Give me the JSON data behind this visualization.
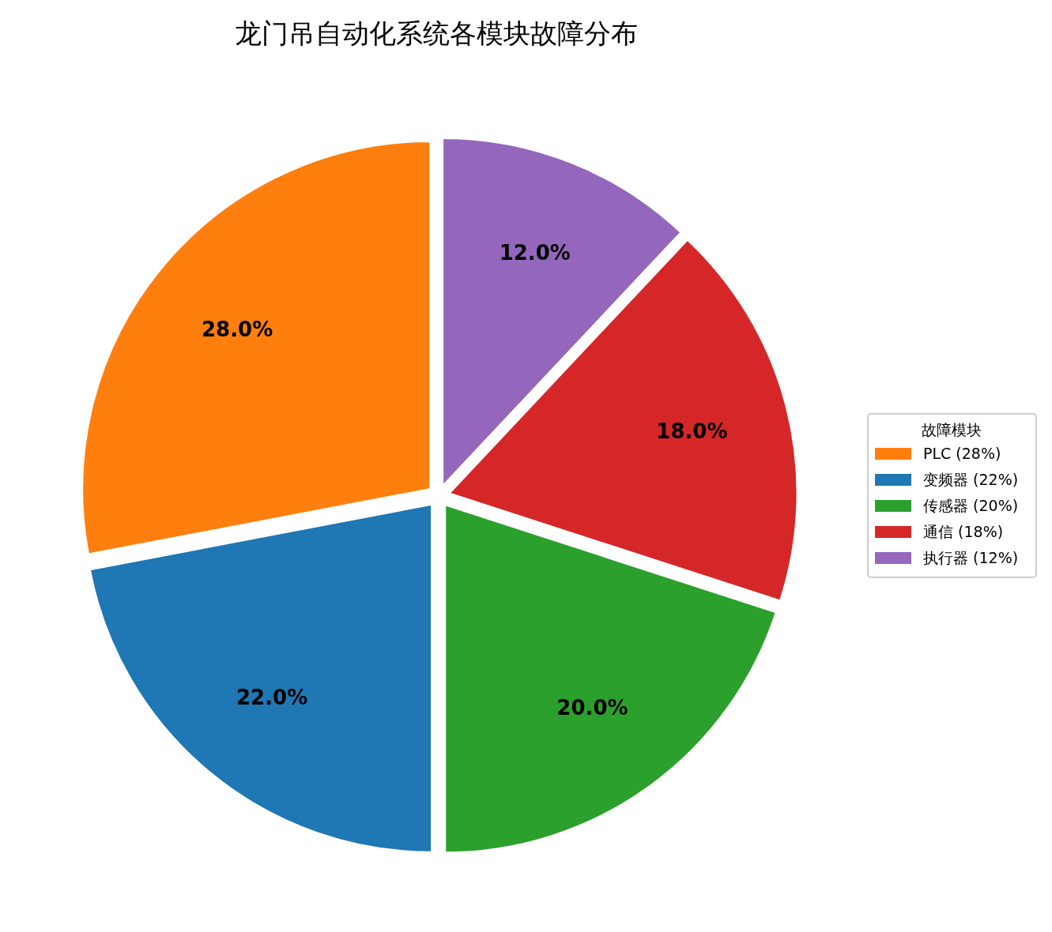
{
  "chart_data": {
    "type": "pie",
    "title": "龙门吊自动化系统各模块故障分布",
    "categories": [
      "PLC (28%)",
      "变频器 (22%)",
      "传感器 (20%)",
      "通信 (18%)",
      "执行器 (12%)"
    ],
    "values": [
      28,
      22,
      20,
      18,
      12
    ],
    "colors": [
      "#ff7f0e",
      "#1f77b4",
      "#2ca02c",
      "#d62728",
      "#9467bd"
    ],
    "value_labels": [
      "28.0%",
      "22.0%",
      "20.0%",
      "18.0%",
      "12.0%"
    ],
    "legend_title": "故障模块",
    "legend": "right"
  }
}
